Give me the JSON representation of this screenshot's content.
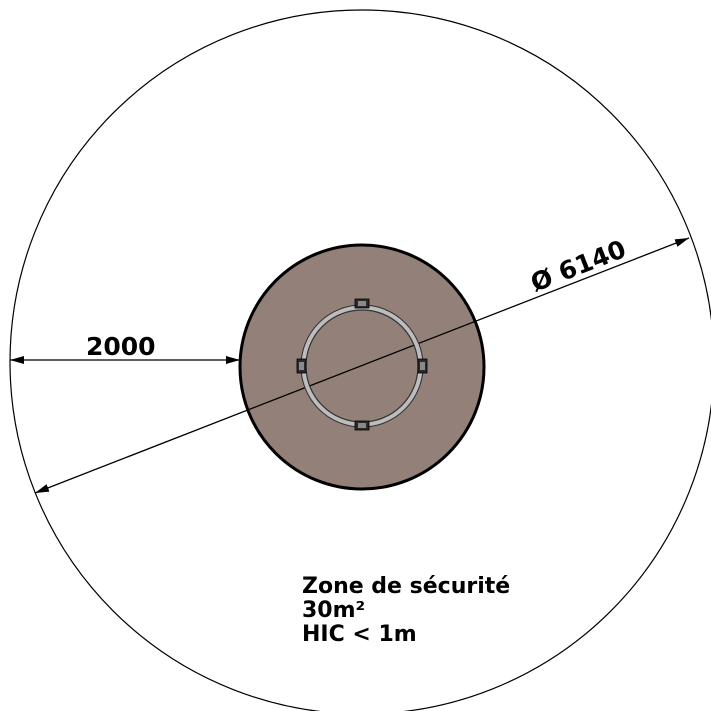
{
  "dimensions": {
    "offset_label": "2000",
    "diameter_label": "Ø 6140"
  },
  "safety_zone": {
    "title": "Zone de sécurité",
    "area": "30m²",
    "hic": "HIC < 1m"
  },
  "colors": {
    "base_fill": "#938179",
    "outline": "#000000",
    "ring": "#b9b9b9",
    "background": "#ffffff"
  }
}
